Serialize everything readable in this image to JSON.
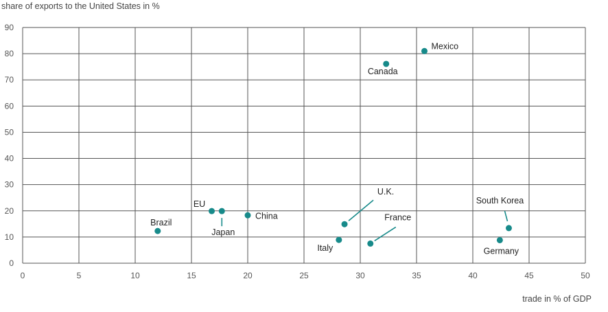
{
  "chart_data": {
    "type": "scatter",
    "ylabel": "share of exports to the United States in %",
    "xlabel": "trade in % of GDP",
    "xlim": [
      0,
      50
    ],
    "ylim": [
      0,
      90
    ],
    "xticks": [
      "0",
      "5",
      "10",
      "15",
      "20",
      "25",
      "30",
      "35",
      "40",
      "45",
      "50"
    ],
    "yticks": [
      "0",
      "10",
      "20",
      "30",
      "40",
      "50",
      "60",
      "70",
      "80",
      "90"
    ],
    "grid": true,
    "legend": "none",
    "point_color": "#178a8a",
    "points": [
      {
        "label": "Brazil",
        "x": 12.0,
        "y": 12.3
      },
      {
        "label": "EU",
        "x": 16.8,
        "y": 19.9
      },
      {
        "label": "Japan",
        "x": 17.7,
        "y": 19.9
      },
      {
        "label": "China",
        "x": 20.0,
        "y": 18.3
      },
      {
        "label": "Italy",
        "x": 28.1,
        "y": 8.9
      },
      {
        "label": "U.K.",
        "x": 28.6,
        "y": 14.9
      },
      {
        "label": "France",
        "x": 30.9,
        "y": 7.5
      },
      {
        "label": "Canada",
        "x": 32.3,
        "y": 76.1
      },
      {
        "label": "Mexico",
        "x": 35.7,
        "y": 81.0
      },
      {
        "label": "Germany",
        "x": 42.4,
        "y": 8.8
      },
      {
        "label": "South Korea",
        "x": 43.2,
        "y": 13.4
      }
    ]
  }
}
